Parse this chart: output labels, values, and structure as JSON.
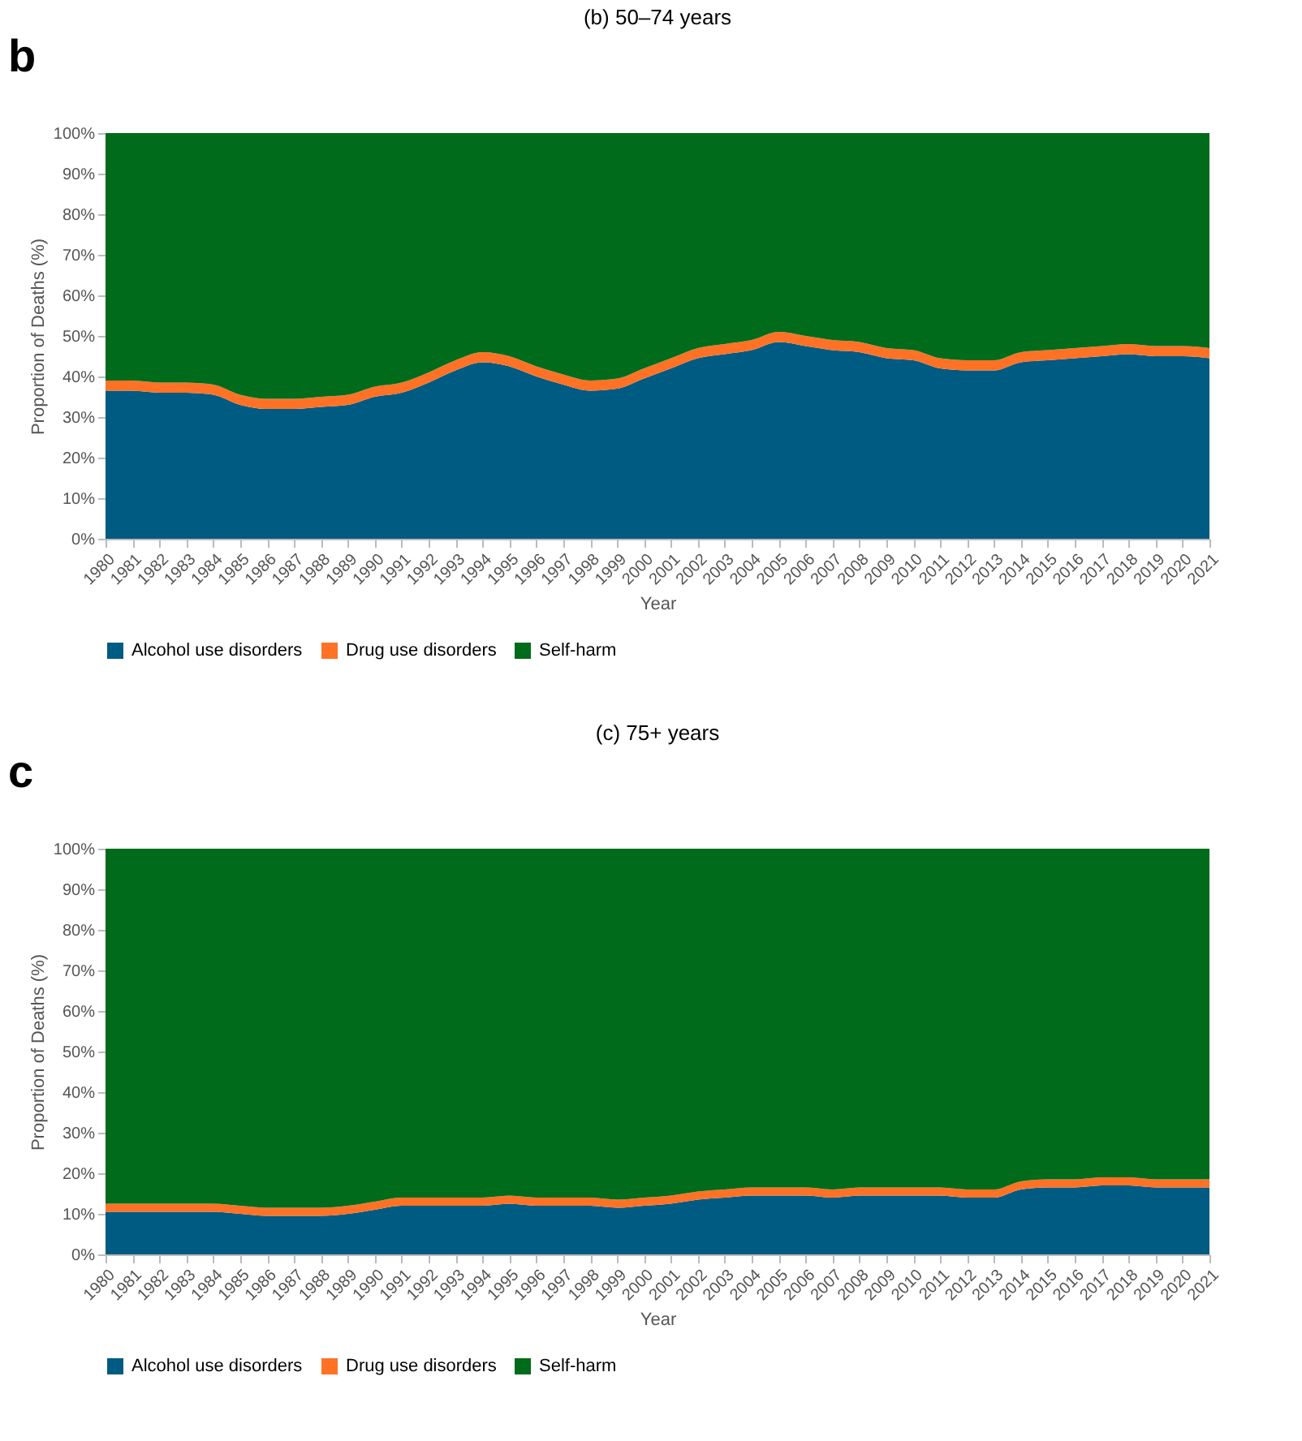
{
  "chart_data": [
    {
      "type": "area",
      "title": "(b) 50–74 years",
      "annotations": [
        "b"
      ],
      "xlabel": "Year",
      "ylabel": "Proportion of Deaths (%)",
      "stacked": true,
      "legend": "bottom",
      "grid": false,
      "categories": [
        "1980",
        "1981",
        "1982",
        "1983",
        "1984",
        "1985",
        "1986",
        "1987",
        "1988",
        "1989",
        "1990",
        "1991",
        "1992",
        "1993",
        "1994",
        "1995",
        "1996",
        "1997",
        "1998",
        "1999",
        "2000",
        "2001",
        "2002",
        "2003",
        "2004",
        "2005",
        "2006",
        "2007",
        "2008",
        "2009",
        "2010",
        "2011",
        "2012",
        "2013",
        "2014",
        "2015",
        "2016",
        "2017",
        "2018",
        "2019",
        "2020",
        "2021"
      ],
      "ylim": [
        0,
        100
      ],
      "yticks": [
        {
          "value": 0,
          "label": "0%"
        },
        {
          "value": 10,
          "label": "10%"
        },
        {
          "value": 20,
          "label": "20%"
        },
        {
          "value": 30,
          "label": "30%"
        },
        {
          "value": 40,
          "label": "40%"
        },
        {
          "value": 50,
          "label": "50%"
        },
        {
          "value": 60,
          "label": "60%"
        },
        {
          "value": 70,
          "label": "70%"
        },
        {
          "value": 80,
          "label": "80%"
        },
        {
          "value": 90,
          "label": "90%"
        },
        {
          "value": 100,
          "label": "100%"
        }
      ],
      "series": [
        {
          "name": "Alcohol use disorders",
          "color": "#005b82",
          "values": [
            36.5,
            36.5,
            36,
            36,
            35.5,
            33,
            32,
            32,
            32.5,
            33,
            35,
            36,
            38.5,
            41.5,
            43.5,
            42.5,
            40,
            38,
            36.5,
            37,
            39.5,
            42,
            44.5,
            45.5,
            46.5,
            48.5,
            47.5,
            46.5,
            46,
            44.5,
            44,
            42,
            41.5,
            41.5,
            43.5,
            44,
            44.5,
            45,
            45.5,
            45,
            45,
            44.5
          ]
        },
        {
          "name": "Drug use disorders",
          "color": "#ff7226",
          "values": [
            2.5,
            2.5,
            2.5,
            2.5,
            2.5,
            2.5,
            2.5,
            2.5,
            2.5,
            2.5,
            2.5,
            2.5,
            2.5,
            2.5,
            2.5,
            2.5,
            2.5,
            2.5,
            2.5,
            2.5,
            2.5,
            2.5,
            2.5,
            2.5,
            2.5,
            2.5,
            2.5,
            2.5,
            2.5,
            2.5,
            2.5,
            2.5,
            2.5,
            2.5,
            2.5,
            2.5,
            2.5,
            2.5,
            2.5,
            2.5,
            2.5,
            2.5
          ]
        },
        {
          "name": "Self-harm",
          "color": "#006b1a",
          "values": [
            61,
            61,
            61.5,
            61.5,
            62,
            64.5,
            65.5,
            65.5,
            65,
            64.5,
            62.5,
            61.5,
            59,
            56,
            54,
            55,
            57.5,
            59.5,
            61,
            60.5,
            58,
            55.5,
            53,
            52,
            51,
            49,
            50,
            51,
            51.5,
            53,
            53.5,
            55.5,
            56,
            56,
            54,
            53.5,
            53,
            52.5,
            52,
            52.5,
            52.5,
            53
          ]
        }
      ]
    },
    {
      "type": "area",
      "title": "(c) 75+ years",
      "annotations": [
        "c"
      ],
      "xlabel": "Year",
      "ylabel": "Proportion of Deaths (%)",
      "stacked": true,
      "legend": "bottom",
      "grid": false,
      "categories": [
        "1980",
        "1981",
        "1982",
        "1983",
        "1984",
        "1985",
        "1986",
        "1987",
        "1988",
        "1989",
        "1990",
        "1991",
        "1992",
        "1993",
        "1994",
        "1995",
        "1996",
        "1997",
        "1998",
        "1999",
        "2000",
        "2001",
        "2002",
        "2003",
        "2004",
        "2005",
        "2006",
        "2007",
        "2008",
        "2009",
        "2010",
        "2011",
        "2012",
        "2013",
        "2014",
        "2015",
        "2016",
        "2017",
        "2018",
        "2019",
        "2020",
        "2021"
      ],
      "ylim": [
        0,
        100
      ],
      "yticks": [
        {
          "value": 0,
          "label": "0%"
        },
        {
          "value": 10,
          "label": "10%"
        },
        {
          "value": 20,
          "label": "20%"
        },
        {
          "value": 30,
          "label": "30%"
        },
        {
          "value": 40,
          "label": "40%"
        },
        {
          "value": 50,
          "label": "50%"
        },
        {
          "value": 60,
          "label": "60%"
        },
        {
          "value": 70,
          "label": "70%"
        },
        {
          "value": 80,
          "label": "80%"
        },
        {
          "value": 90,
          "label": "90%"
        },
        {
          "value": 100,
          "label": "100%"
        }
      ],
      "series": [
        {
          "name": "Alcohol use disorders",
          "color": "#005b82",
          "values": [
            10.5,
            10.5,
            10.5,
            10.5,
            10.5,
            10,
            9.5,
            9.5,
            9.5,
            10,
            11,
            12,
            12,
            12,
            12,
            12.5,
            12,
            12,
            12,
            11.5,
            12,
            12.5,
            13.5,
            14,
            14.5,
            14.5,
            14.5,
            14,
            14.5,
            14.5,
            14.5,
            14.5,
            14,
            14,
            16,
            16.5,
            16.5,
            17,
            17,
            16.5,
            16.5,
            16.5
          ]
        },
        {
          "name": "Drug use disorders",
          "color": "#ff7226",
          "values": [
            2,
            2,
            2,
            2,
            2,
            2,
            2,
            2,
            2,
            2,
            2,
            2,
            2,
            2,
            2,
            2,
            2,
            2,
            2,
            2,
            2,
            2,
            2,
            2,
            2,
            2,
            2,
            2,
            2,
            2,
            2,
            2,
            2,
            2,
            2,
            2,
            2,
            2,
            2,
            2,
            2,
            2
          ]
        },
        {
          "name": "Self-harm",
          "color": "#006b1a",
          "values": [
            87.5,
            87.5,
            87.5,
            87.5,
            87.5,
            88,
            88.5,
            88.5,
            88.5,
            88,
            87,
            86,
            86,
            86,
            86,
            85.5,
            86,
            86,
            86,
            86.5,
            86,
            85.5,
            84.5,
            84,
            83.5,
            83.5,
            83.5,
            84,
            83.5,
            83.5,
            83.5,
            83.5,
            84,
            84,
            82,
            81.5,
            81.5,
            81,
            81,
            81.5,
            81.5,
            81.5
          ]
        }
      ]
    }
  ]
}
